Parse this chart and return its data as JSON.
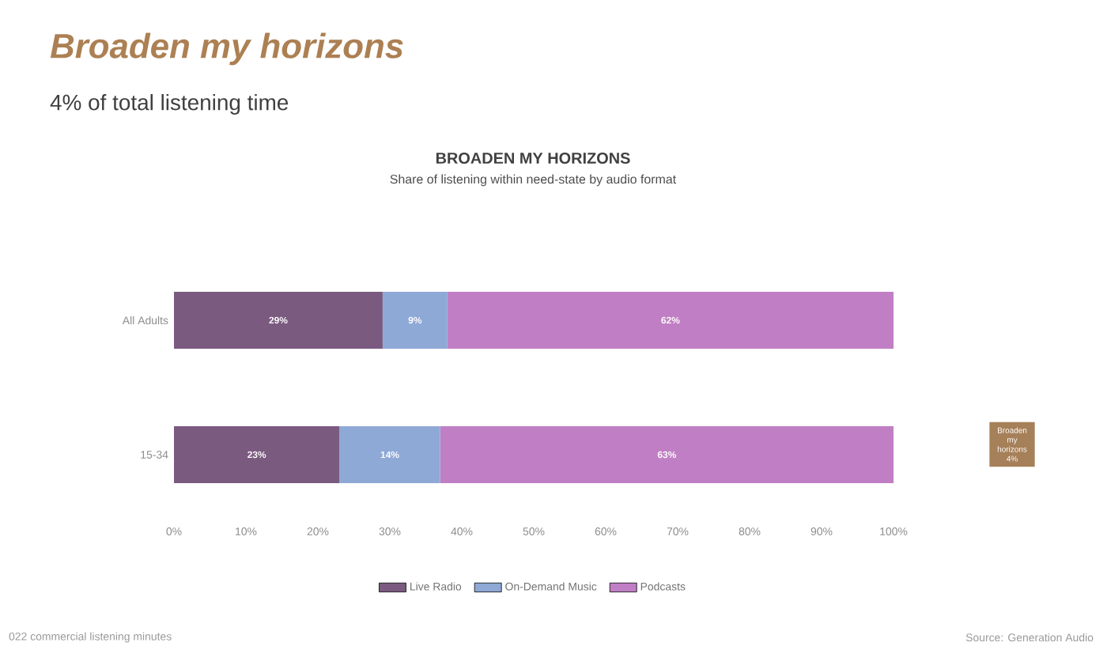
{
  "chart_data": {
    "type": "bar",
    "orientation": "horizontal",
    "stacked": true,
    "title": "BROADEN MY HORIZONS",
    "subtitle": "Share of listening within need-state by audio format",
    "categories": [
      "All Adults",
      "15-34"
    ],
    "series": [
      {
        "name": "Live Radio",
        "color": "#7b5a80",
        "values": [
          29,
          23
        ],
        "value_labels": [
          "29%",
          "23%"
        ]
      },
      {
        "name": "On-Demand Music",
        "color": "#8fa9d6",
        "values": [
          9,
          14
        ],
        "value_labels": [
          "9%",
          "14%"
        ]
      },
      {
        "name": "Podcasts",
        "color": "#c07fc4",
        "values": [
          62,
          63
        ],
        "value_labels": [
          "62%",
          "63%"
        ]
      }
    ],
    "xlim": [
      0,
      100
    ],
    "xticks": [
      {
        "value": 0,
        "label": "0%"
      },
      {
        "value": 10,
        "label": "10%"
      },
      {
        "value": 20,
        "label": "20%"
      },
      {
        "value": 30,
        "label": "30%"
      },
      {
        "value": 40,
        "label": "40%"
      },
      {
        "value": 50,
        "label": "50%"
      },
      {
        "value": 60,
        "label": "60%"
      },
      {
        "value": 70,
        "label": "70%"
      },
      {
        "value": 80,
        "label": "80%"
      },
      {
        "value": 90,
        "label": "90%"
      },
      {
        "value": 100,
        "label": "100%"
      }
    ],
    "legend": "bottom",
    "annotations": [
      "Broaden my horizons",
      "4% of total listening time",
      "Broaden my horizons 4%",
      "022 commercial listening minutes",
      "Source: Generation Audio"
    ]
  }
}
